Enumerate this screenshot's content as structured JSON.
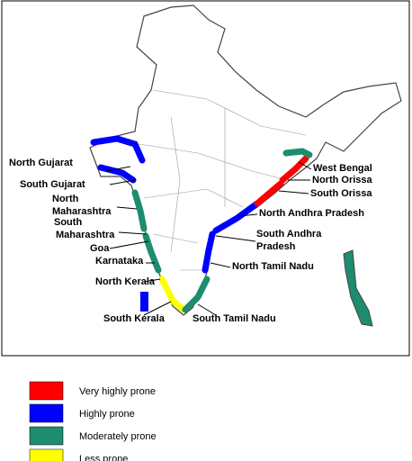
{
  "map": {
    "regions": [
      {
        "lines": [
          "North Gujarat"
        ]
      },
      {
        "lines": [
          "South Gujarat"
        ]
      },
      {
        "lines": [
          "North",
          "Maharashtra"
        ]
      },
      {
        "lines": [
          "South",
          "Maharashtra"
        ]
      },
      {
        "lines": [
          "Goa"
        ]
      },
      {
        "lines": [
          "Karnataka"
        ]
      },
      {
        "lines": [
          "North Kerala"
        ]
      },
      {
        "lines": [
          "South Kerala"
        ]
      },
      {
        "lines": [
          "South Tamil Nadu"
        ]
      },
      {
        "lines": [
          "North Tamil Nadu"
        ]
      },
      {
        "lines": [
          "South Andhra",
          "Pradesh"
        ]
      },
      {
        "lines": [
          "North Andhra Pradesh"
        ]
      },
      {
        "lines": [
          "South Orissa"
        ]
      },
      {
        "lines": [
          "North Orissa"
        ]
      },
      {
        "lines": [
          "West Bengal"
        ]
      }
    ]
  },
  "legend": [
    {
      "label": "Very highly prone",
      "color": "#ff0000"
    },
    {
      "label": "Highly prone",
      "color": "#0000ff"
    },
    {
      "label": "Moderately prone",
      "color": "#1e8c6e"
    },
    {
      "label": "Less prone",
      "color": "#ffff00"
    }
  ]
}
